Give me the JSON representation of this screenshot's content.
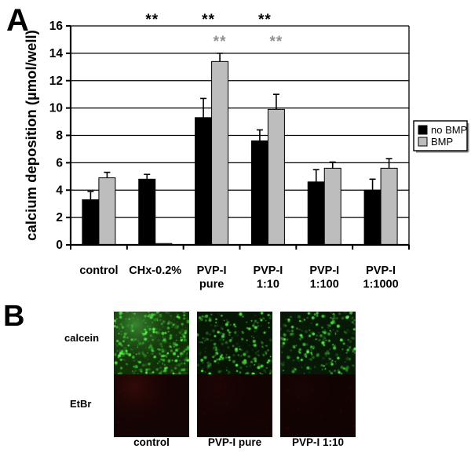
{
  "panel_a": {
    "label": "A"
  },
  "chart_data": {
    "type": "bar",
    "title": "",
    "xlabel": "",
    "ylabel": "calcium deposition (µmol/well)",
    "ylim": [
      0,
      16
    ],
    "ytick_step": 2,
    "grid": "horizontal",
    "categories": [
      "control",
      "CHx-0.2%",
      "PVP-I pure",
      "PVP-I 1:10",
      "PVP-I 1:100",
      "PVP-I 1:1000"
    ],
    "category_label_lines": [
      [
        "control"
      ],
      [
        "CHx-0.2%"
      ],
      [
        "PVP-I",
        "pure"
      ],
      [
        "PVP-I",
        "1:10"
      ],
      [
        "PVP-I",
        "1:100"
      ],
      [
        "PVP-I",
        "1:1000"
      ]
    ],
    "series": [
      {
        "name": "no BMP",
        "color": "#000000",
        "values": [
          3.3,
          4.8,
          9.3,
          7.6,
          4.6,
          4.0
        ],
        "errors_plus": [
          0.6,
          0.35,
          1.4,
          0.8,
          0.9,
          0.8
        ]
      },
      {
        "name": "BMP",
        "color": "#bdbdbd",
        "values": [
          4.9,
          0.1,
          13.4,
          9.9,
          5.6,
          5.6
        ],
        "errors_plus": [
          0.4,
          0,
          0.6,
          1.1,
          0.45,
          0.7
        ]
      }
    ],
    "legend": {
      "position": "right",
      "entries": [
        "no BMP",
        "BMP"
      ]
    },
    "significance_marks": [
      {
        "symbol": "**",
        "category": "CHx-0.2%",
        "category_index": 1,
        "row": "top",
        "color": "#000000"
      },
      {
        "symbol": "**",
        "category": "PVP-I pure",
        "category_index": 2,
        "row": "top",
        "color": "#000000"
      },
      {
        "symbol": "**",
        "category": "PVP-I 1:10",
        "category_index": 3,
        "row": "top",
        "color": "#000000"
      },
      {
        "symbol": "**",
        "category": "PVP-I pure",
        "category_index": 2,
        "row": "sub",
        "color": "#8f8f8f"
      },
      {
        "symbol": "**",
        "category": "PVP-I 1:10",
        "category_index": 3,
        "row": "sub",
        "color": "#8f8f8f"
      }
    ]
  },
  "panel_b": {
    "label": "B",
    "row_labels": [
      "calcein",
      "EtBr"
    ],
    "columns": [
      {
        "label": "control",
        "calcein": {
          "bg": "#123008",
          "dots": 430,
          "bright_patch": 0.5
        },
        "etbr": {
          "bg": "#150404",
          "glow": 0.22
        }
      },
      {
        "label": "PVP-I pure",
        "calcein": {
          "bg": "#071505",
          "dots": 240,
          "bright_patch": 0
        },
        "etbr": {
          "bg": "#140303",
          "glow": 0.08
        }
      },
      {
        "label": "PVP-I 1:10",
        "calcein": {
          "bg": "#081807",
          "dots": 250,
          "bright_patch": 0
        },
        "etbr": {
          "bg": "#120303",
          "glow": 0.05
        }
      }
    ]
  }
}
